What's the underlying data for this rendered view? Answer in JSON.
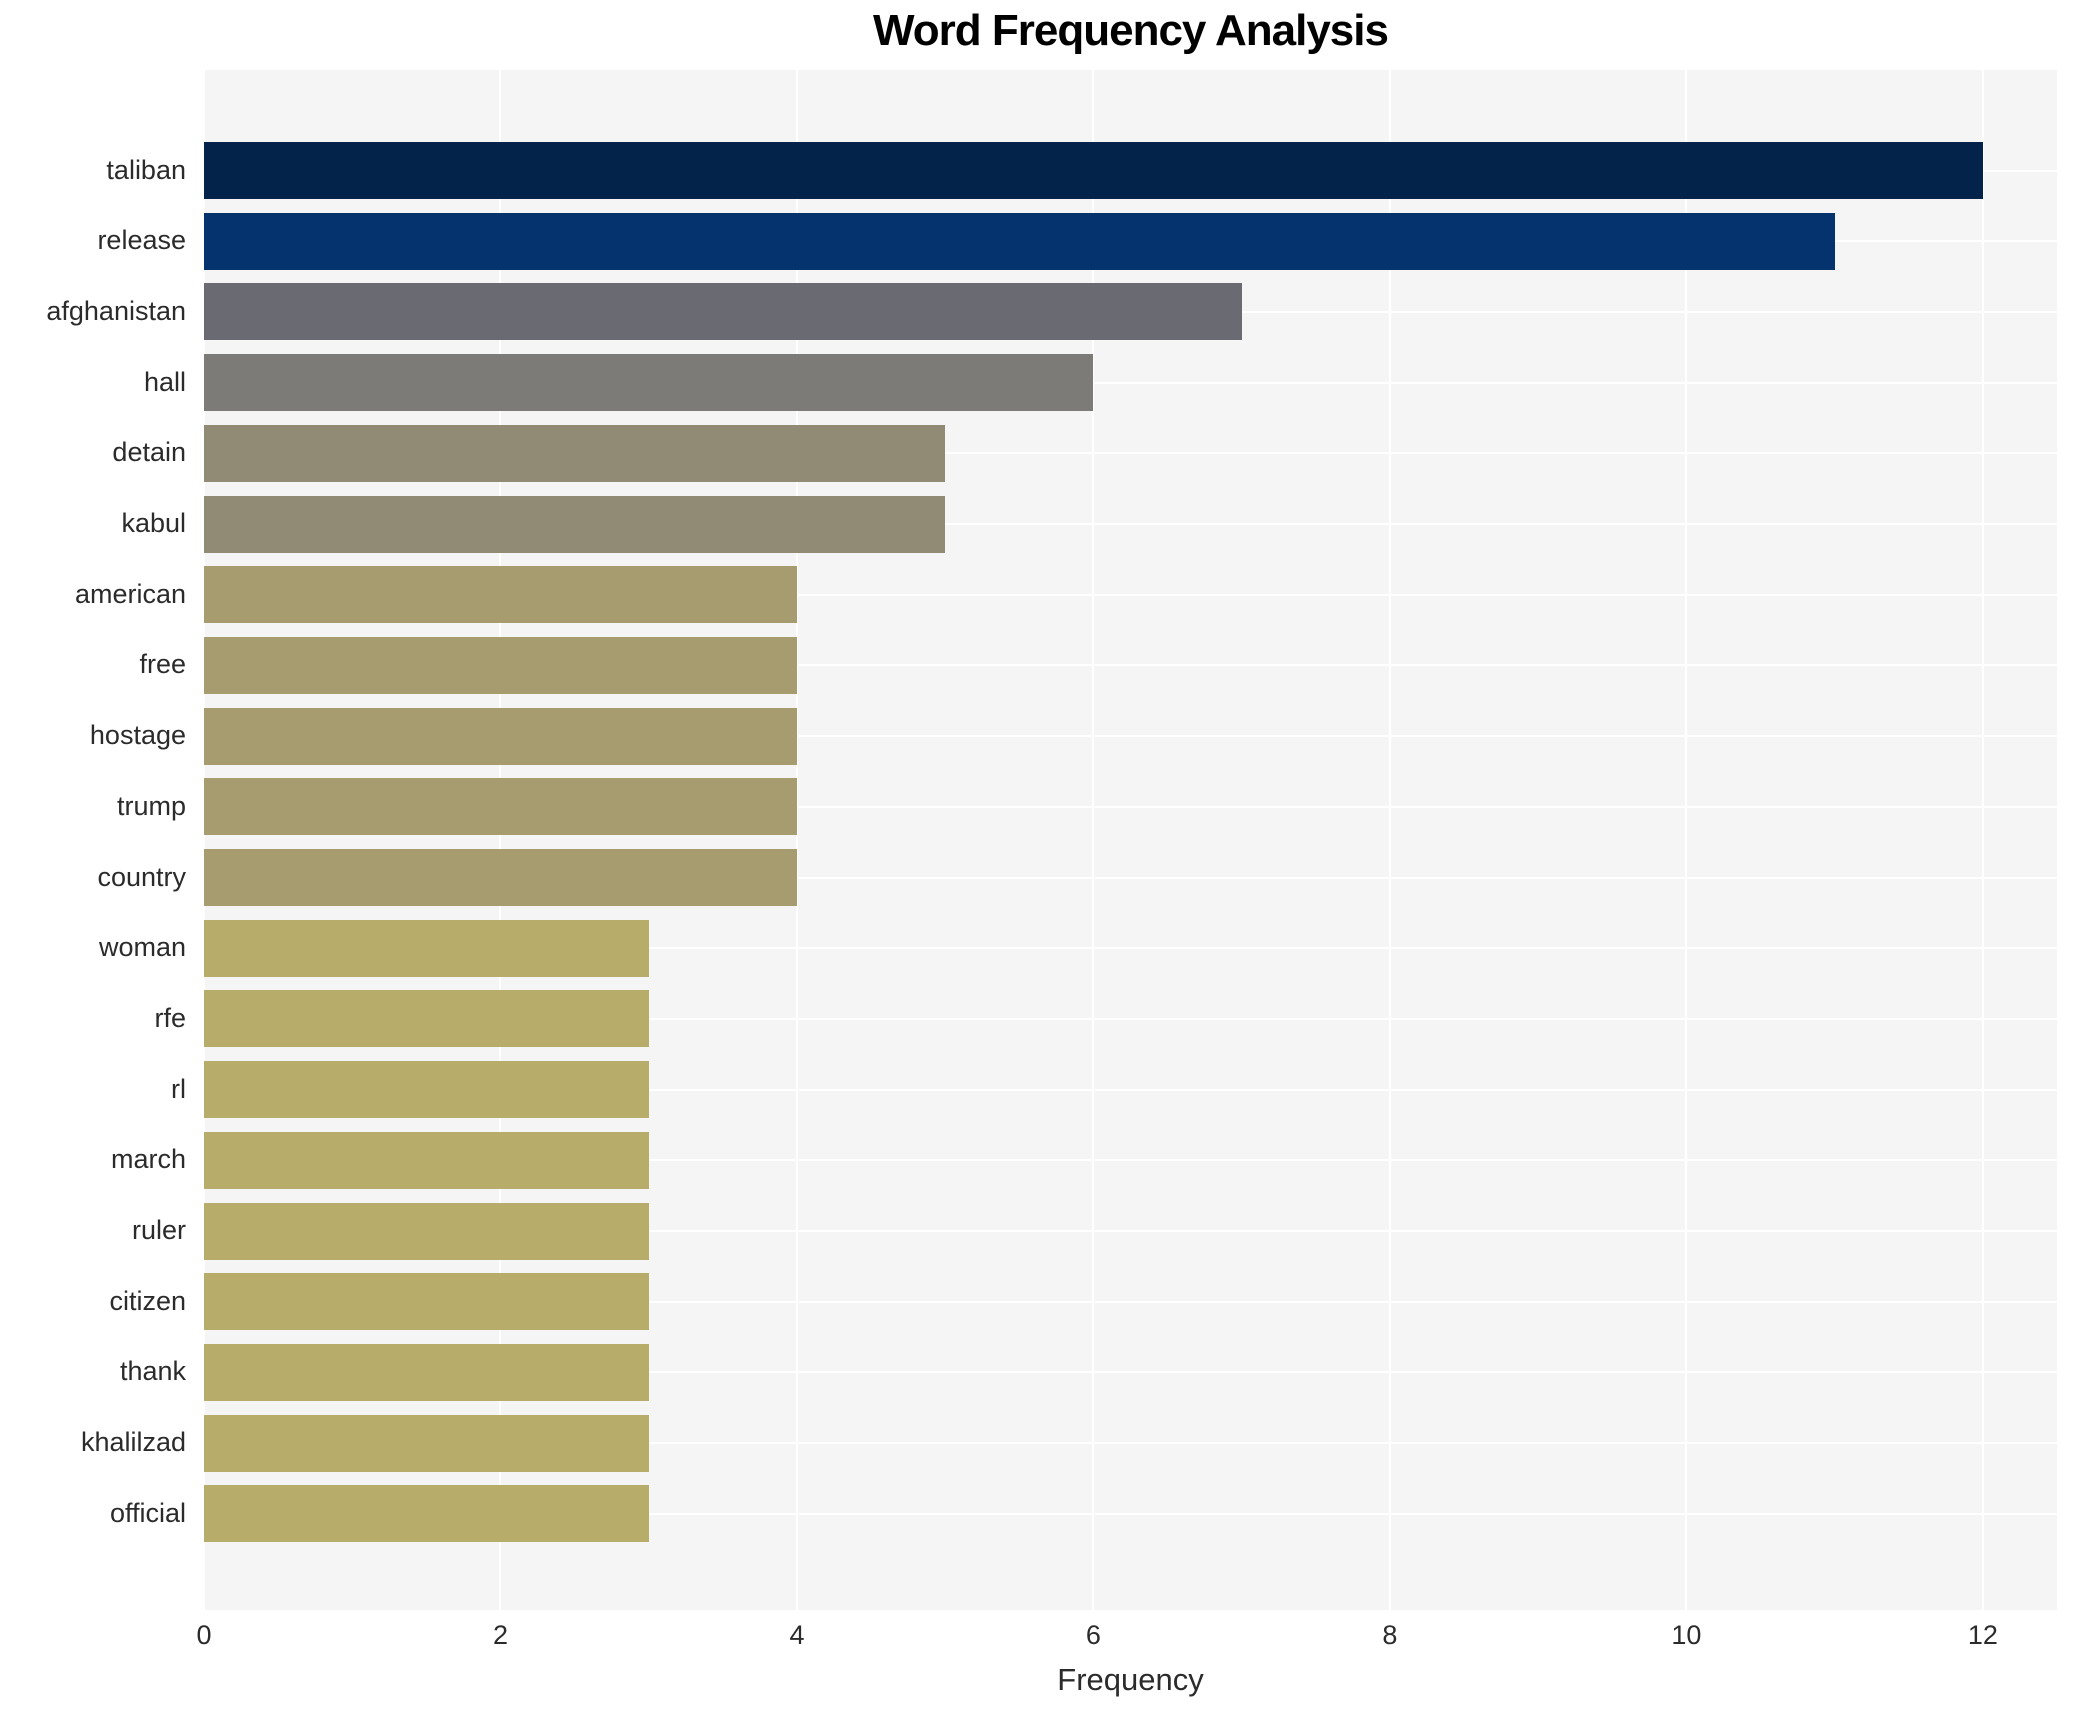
{
  "figure": {
    "title": "Word Frequency Analysis",
    "xlabel": "Frequency",
    "background_color": "#ffffff",
    "plot_background_color": "#f5f5f6",
    "grid_color": "#ffffff",
    "tick_label_color": "#2b2b2b",
    "title_color": "#000000"
  },
  "chart_data": {
    "type": "bar",
    "orientation": "horizontal",
    "title": "Word Frequency Analysis",
    "xlabel": "Frequency",
    "ylabel": "",
    "categories": [
      "taliban",
      "release",
      "afghanistan",
      "hall",
      "detain",
      "kabul",
      "american",
      "free",
      "hostage",
      "trump",
      "country",
      "woman",
      "rfe",
      "rl",
      "march",
      "ruler",
      "citizen",
      "thank",
      "khalilzad",
      "official"
    ],
    "values": [
      12,
      11,
      7,
      6,
      5,
      5,
      4,
      4,
      4,
      4,
      4,
      3,
      3,
      3,
      3,
      3,
      3,
      3,
      3,
      3
    ],
    "bar_colors": [
      "#03234b",
      "#04336e",
      "#6a6a72",
      "#7c7b77",
      "#918b76",
      "#918b76",
      "#a69c70",
      "#a69c70",
      "#a69c70",
      "#a69c70",
      "#a69c70",
      "#b8ac6b",
      "#b8ac6b",
      "#b8ac6b",
      "#b8ac6b",
      "#b8ac6b",
      "#b8ac6b",
      "#b8ac6b",
      "#b8ac6b",
      "#b8ac6b"
    ],
    "xlim": [
      0,
      12.5
    ],
    "xticks": [
      0,
      2,
      4,
      6,
      8,
      10,
      12
    ],
    "grid": true,
    "legend": false
  }
}
